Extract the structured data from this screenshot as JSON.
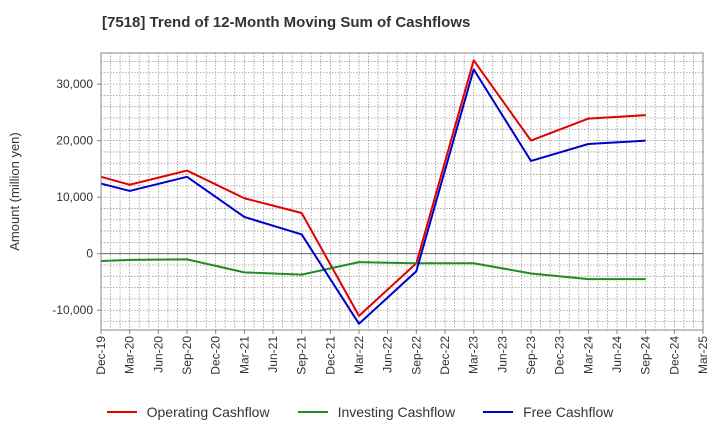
{
  "chart_data": {
    "type": "line",
    "title": "[7518]  Trend of 12-Month Moving Sum of Cashflows",
    "ylabel": "Amount (million yen)",
    "xlabel": "",
    "categories": [
      "Dec-19",
      "Mar-20",
      "Jun-20",
      "Sep-20",
      "Dec-20",
      "Mar-21",
      "Jun-21",
      "Sep-21",
      "Dec-21",
      "Mar-22",
      "Jun-22",
      "Sep-22",
      "Dec-22",
      "Mar-23",
      "Jun-23",
      "Sep-23",
      "Dec-23",
      "Mar-24",
      "Jun-24",
      "Sep-24",
      "Dec-24",
      "Mar-25"
    ],
    "ylim": [
      -13500,
      35500
    ],
    "yticks": [
      -10000,
      0,
      10000,
      20000,
      30000
    ],
    "ytick_labels": [
      "-10,000",
      "0",
      "10,000",
      "20,000",
      "30,000"
    ],
    "grid": true,
    "legend_position": "bottom",
    "series": [
      {
        "name": "Operating Cashflow",
        "color": "#e00000",
        "values": [
          13600,
          12200,
          null,
          14700,
          null,
          9800,
          null,
          7200,
          null,
          -11000,
          null,
          -1700,
          null,
          34200,
          null,
          20000,
          null,
          23900,
          null,
          24500,
          null,
          null
        ]
      },
      {
        "name": "Investing Cashflow",
        "color": "#228b22",
        "values": [
          -1300,
          -1100,
          null,
          -1000,
          null,
          -3300,
          null,
          -3700,
          null,
          -1500,
          null,
          -1700,
          null,
          -1700,
          null,
          -3500,
          null,
          -4500,
          null,
          -4500,
          null,
          null
        ]
      },
      {
        "name": "Free Cashflow",
        "color": "#0000cc",
        "values": [
          12400,
          11100,
          null,
          13600,
          null,
          6500,
          null,
          3400,
          null,
          -12400,
          null,
          -3100,
          null,
          32600,
          null,
          16400,
          null,
          19400,
          null,
          20000,
          null,
          null
        ]
      }
    ]
  }
}
